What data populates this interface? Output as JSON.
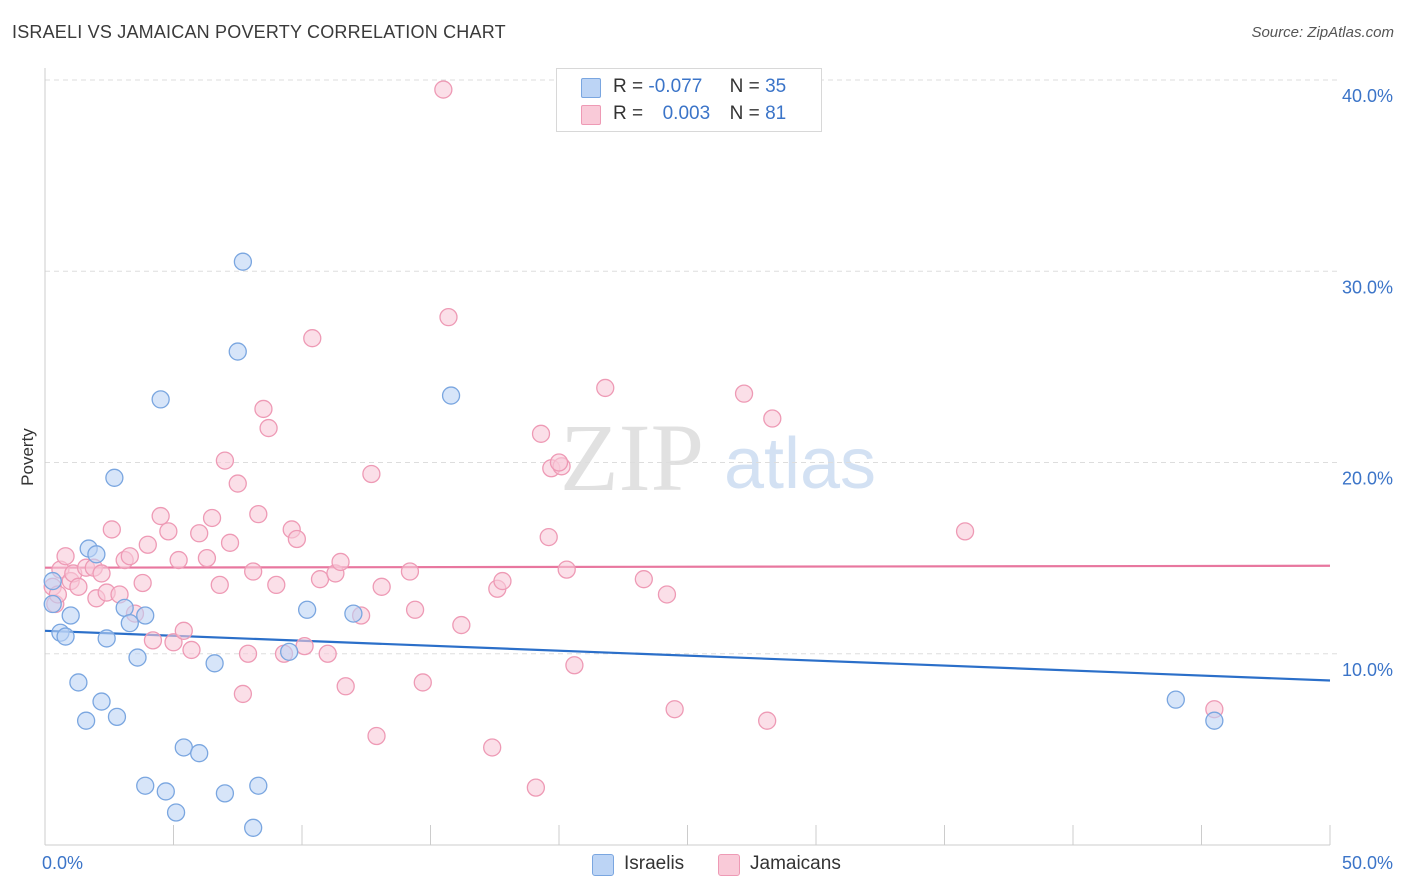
{
  "title": "ISRAELI VS JAMAICAN POVERTY CORRELATION CHART",
  "source": "Source: ZipAtlas.com",
  "watermark": {
    "zip": "ZIP",
    "atlas": "atlas"
  },
  "legend": {
    "r_label": "R =",
    "n_label": "N =",
    "israelis": {
      "r": "-0.077",
      "n": "35"
    },
    "jamaicans": {
      "r": "0.003",
      "n": "81"
    }
  },
  "bottom_legend": {
    "israelis": "Israelis",
    "jamaicans": "Jamaicans"
  },
  "colors": {
    "israelis_fill": "#bcd4f5",
    "israelis_stroke": "#7aa6e0",
    "israelis_line": "#2b6fc9",
    "jamaicans_fill": "#f9cad8",
    "jamaicans_stroke": "#ee9ab5",
    "jamaicans_line": "#e8779f",
    "axis_text": "#3b74c8",
    "grid": "#dddddd"
  },
  "chart_data": {
    "type": "scatter",
    "title": "ISRAELI VS JAMAICAN POVERTY CORRELATION CHART",
    "xlabel": "",
    "ylabel": "Poverty",
    "xlim": [
      0,
      50
    ],
    "ylim": [
      0,
      40
    ],
    "x_tick_labels": [
      "0.0%",
      "50.0%"
    ],
    "y_ticks": [
      10,
      20,
      30,
      40
    ],
    "y_tick_labels": [
      "10.0%",
      "20.0%",
      "30.0%",
      "40.0%"
    ],
    "grid": true,
    "legend_position": "top-center",
    "series": [
      {
        "name": "Israelis",
        "r": -0.077,
        "n": 35,
        "trend": {
          "x": [
            0,
            50
          ],
          "y": [
            11.2,
            8.6
          ]
        },
        "points": [
          [
            0.3,
            13.8
          ],
          [
            0.3,
            12.6
          ],
          [
            0.6,
            11.1
          ],
          [
            0.8,
            10.9
          ],
          [
            1.0,
            12.0
          ],
          [
            1.3,
            8.5
          ],
          [
            1.6,
            6.5
          ],
          [
            1.7,
            15.5
          ],
          [
            2.0,
            15.2
          ],
          [
            2.2,
            7.5
          ],
          [
            2.4,
            10.8
          ],
          [
            2.7,
            19.2
          ],
          [
            2.8,
            6.7
          ],
          [
            3.1,
            12.4
          ],
          [
            3.3,
            11.6
          ],
          [
            3.6,
            9.8
          ],
          [
            3.9,
            12.0
          ],
          [
            3.9,
            3.1
          ],
          [
            4.5,
            23.3
          ],
          [
            4.7,
            2.8
          ],
          [
            5.1,
            1.7
          ],
          [
            5.4,
            5.1
          ],
          [
            6.0,
            4.8
          ],
          [
            6.6,
            9.5
          ],
          [
            7.0,
            2.7
          ],
          [
            7.5,
            25.8
          ],
          [
            7.7,
            30.5
          ],
          [
            8.1,
            0.9
          ],
          [
            8.3,
            3.1
          ],
          [
            9.5,
            10.1
          ],
          [
            10.2,
            12.3
          ],
          [
            12.0,
            12.1
          ],
          [
            15.8,
            23.5
          ],
          [
            44.0,
            7.6
          ],
          [
            45.5,
            6.5
          ]
        ]
      },
      {
        "name": "Jamaicans",
        "r": 0.003,
        "n": 81,
        "trend": {
          "x": [
            0,
            50
          ],
          "y": [
            14.5,
            14.6
          ]
        },
        "points": [
          [
            0.3,
            13.5
          ],
          [
            0.4,
            12.6
          ],
          [
            0.5,
            13.1
          ],
          [
            0.6,
            14.4
          ],
          [
            0.8,
            15.1
          ],
          [
            1.0,
            13.8
          ],
          [
            1.1,
            14.2
          ],
          [
            1.3,
            13.5
          ],
          [
            1.6,
            14.5
          ],
          [
            1.9,
            14.5
          ],
          [
            2.0,
            12.9
          ],
          [
            2.2,
            14.2
          ],
          [
            2.4,
            13.2
          ],
          [
            2.6,
            16.5
          ],
          [
            2.9,
            13.1
          ],
          [
            3.1,
            14.9
          ],
          [
            3.3,
            15.1
          ],
          [
            3.5,
            12.1
          ],
          [
            3.8,
            13.7
          ],
          [
            4.0,
            15.7
          ],
          [
            4.2,
            10.7
          ],
          [
            4.5,
            17.2
          ],
          [
            4.8,
            16.4
          ],
          [
            5.0,
            10.6
          ],
          [
            5.2,
            14.9
          ],
          [
            5.4,
            11.2
          ],
          [
            5.7,
            10.2
          ],
          [
            6.0,
            16.3
          ],
          [
            6.3,
            15.0
          ],
          [
            6.5,
            17.1
          ],
          [
            6.8,
            13.6
          ],
          [
            7.0,
            20.1
          ],
          [
            7.2,
            15.8
          ],
          [
            7.5,
            18.9
          ],
          [
            7.7,
            7.9
          ],
          [
            7.9,
            10.0
          ],
          [
            8.1,
            14.3
          ],
          [
            8.3,
            17.3
          ],
          [
            8.5,
            22.8
          ],
          [
            8.7,
            21.8
          ],
          [
            9.0,
            13.6
          ],
          [
            9.3,
            10.0
          ],
          [
            9.6,
            16.5
          ],
          [
            9.8,
            16.0
          ],
          [
            10.1,
            10.4
          ],
          [
            10.4,
            26.5
          ],
          [
            10.7,
            13.9
          ],
          [
            11.0,
            10.0
          ],
          [
            11.3,
            14.2
          ],
          [
            11.5,
            14.8
          ],
          [
            11.7,
            8.3
          ],
          [
            12.3,
            12.0
          ],
          [
            12.7,
            19.4
          ],
          [
            12.9,
            5.7
          ],
          [
            13.1,
            13.5
          ],
          [
            14.2,
            14.3
          ],
          [
            14.4,
            12.3
          ],
          [
            14.7,
            8.5
          ],
          [
            15.5,
            39.5
          ],
          [
            15.7,
            27.6
          ],
          [
            16.2,
            11.5
          ],
          [
            17.4,
            5.1
          ],
          [
            17.6,
            13.4
          ],
          [
            17.8,
            13.8
          ],
          [
            19.1,
            3.0
          ],
          [
            19.3,
            21.5
          ],
          [
            19.6,
            16.1
          ],
          [
            19.7,
            19.7
          ],
          [
            20.1,
            19.8
          ],
          [
            20.3,
            14.4
          ],
          [
            20.6,
            9.4
          ],
          [
            21.8,
            23.9
          ],
          [
            23.3,
            13.9
          ],
          [
            24.2,
            13.1
          ],
          [
            24.5,
            7.1
          ],
          [
            27.2,
            23.6
          ],
          [
            28.1,
            6.5
          ],
          [
            28.3,
            22.3
          ],
          [
            35.8,
            16.4
          ],
          [
            45.5,
            7.1
          ],
          [
            20.0,
            20.0
          ]
        ]
      }
    ]
  }
}
